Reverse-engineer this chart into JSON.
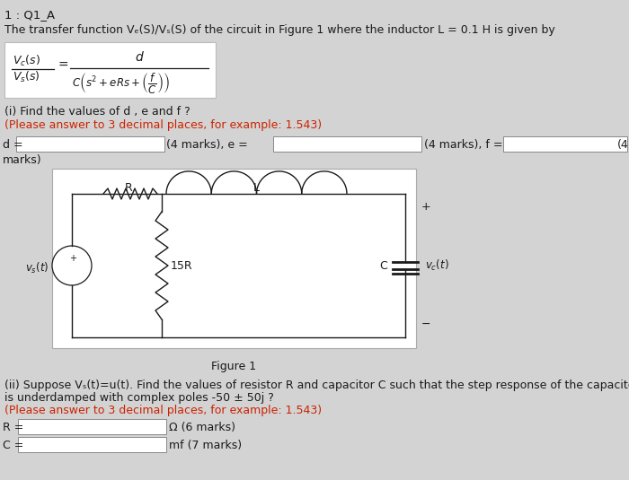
{
  "background_color": "#d3d3d3",
  "text_color": "#1a1a1a",
  "red_color": "#cc2200",
  "white": "#ffffff",
  "grey_border": "#aaaaaa",
  "title": "1 : Q1_A",
  "line1": "The transfer function Vₑ(S)/Vₛ(S) of the circuit in Figure 1 where the inductor L = 0.1 H is given by",
  "part_i": "(i) Find the values of d , e and f ?",
  "part_i_note": "(Please answer to 3 decimal places, for example: 1.543)",
  "part_ii_line1": "(ii) Suppose Vₛ(t)=u(t). Find the values of resistor R and capacitor C such that the step response of the capacitor voltage Vₑ(t)",
  "part_ii_line2": "is underdamped with complex poles -50 ± 50j ?",
  "part_ii_note": "(Please answer to 3 decimal places, for example: 1.543)",
  "R_suffix": "Ω (6 marks)",
  "C_suffix": "mf (7 marks)",
  "figure_label": "Figure 1",
  "fs": 9.0,
  "fs_title": 9.5
}
